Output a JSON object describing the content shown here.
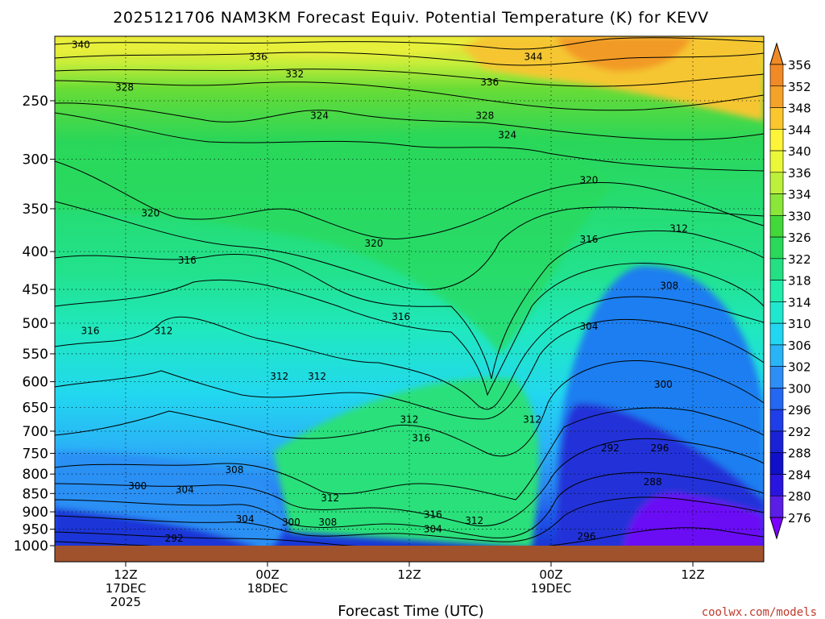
{
  "chart_data": {
    "type": "heatmap",
    "title": "2025121706 NAM3KM Forecast Equiv. Potential Temperature (K) for KEVV",
    "xlabel": "Forecast Time (UTC)",
    "ylabel": "",
    "y_axis": {
      "scale": "pressure",
      "inverted": true,
      "ticks": [
        250,
        300,
        350,
        400,
        450,
        500,
        550,
        600,
        650,
        700,
        750,
        800,
        850,
        900,
        950,
        1000
      ],
      "range": [
        200,
        1000
      ]
    },
    "x_axis": {
      "range_hours": [
        0,
        60
      ],
      "ticks": [
        {
          "hour": 6,
          "lines": [
            "12Z",
            "17DEC",
            "2025"
          ]
        },
        {
          "hour": 18,
          "lines": [
            "00Z",
            "18DEC"
          ]
        },
        {
          "hour": 30,
          "lines": [
            "12Z"
          ]
        },
        {
          "hour": 42,
          "lines": [
            "00Z",
            "19DEC"
          ]
        },
        {
          "hour": 54,
          "lines": [
            "12Z"
          ]
        }
      ]
    },
    "colorbar": {
      "levels": [
        276,
        280,
        284,
        288,
        292,
        296,
        300,
        302,
        306,
        310,
        314,
        318,
        322,
        326,
        330,
        334,
        336,
        340,
        344,
        348,
        352,
        356
      ],
      "colors": [
        "#7a00ff",
        "#5a1ee6",
        "#2a14e0",
        "#1010c8",
        "#1a22d6",
        "#1f3ee8",
        "#2467f0",
        "#2f8ef5",
        "#2ab3f7",
        "#22d6f2",
        "#20e8cf",
        "#22ecaa",
        "#24e083",
        "#2ad85a",
        "#42d83a",
        "#8ae638",
        "#bdf03a",
        "#eaf83a",
        "#fff43a",
        "#fcc62e",
        "#f5a22a",
        "#f08a26"
      ]
    },
    "contour_labels": [
      {
        "text": "340",
        "hour": 2.2,
        "p": 210
      },
      {
        "text": "336",
        "hour": 17.2,
        "p": 218
      },
      {
        "text": "344",
        "hour": 40.5,
        "p": 218
      },
      {
        "text": "332",
        "hour": 20.3,
        "p": 230
      },
      {
        "text": "336",
        "hour": 36.8,
        "p": 236
      },
      {
        "text": "328",
        "hour": 5.9,
        "p": 240
      },
      {
        "text": "324",
        "hour": 22.4,
        "p": 262
      },
      {
        "text": "328",
        "hour": 36.4,
        "p": 262
      },
      {
        "text": "324",
        "hour": 38.3,
        "p": 278
      },
      {
        "text": "320",
        "hour": 45.2,
        "p": 320
      },
      {
        "text": "320",
        "hour": 8.1,
        "p": 355
      },
      {
        "text": "320",
        "hour": 27.0,
        "p": 390
      },
      {
        "text": "316",
        "hour": 45.2,
        "p": 385
      },
      {
        "text": "312",
        "hour": 52.8,
        "p": 372
      },
      {
        "text": "316",
        "hour": 11.2,
        "p": 411
      },
      {
        "text": "308",
        "hour": 52.0,
        "p": 445
      },
      {
        "text": "316",
        "hour": 29.3,
        "p": 490
      },
      {
        "text": "316",
        "hour": 3.0,
        "p": 512
      },
      {
        "text": "312",
        "hour": 9.2,
        "p": 512
      },
      {
        "text": "304",
        "hour": 45.2,
        "p": 505
      },
      {
        "text": "312",
        "hour": 19.0,
        "p": 590
      },
      {
        "text": "312",
        "hour": 22.2,
        "p": 590
      },
      {
        "text": "300",
        "hour": 51.5,
        "p": 605
      },
      {
        "text": "312",
        "hour": 30.0,
        "p": 675
      },
      {
        "text": "312",
        "hour": 40.4,
        "p": 675
      },
      {
        "text": "316",
        "hour": 31.0,
        "p": 715
      },
      {
        "text": "292",
        "hour": 47.0,
        "p": 738
      },
      {
        "text": "296",
        "hour": 51.2,
        "p": 738
      },
      {
        "text": "308",
        "hour": 15.2,
        "p": 790
      },
      {
        "text": "288",
        "hour": 50.6,
        "p": 820
      },
      {
        "text": "300",
        "hour": 7.0,
        "p": 830
      },
      {
        "text": "304",
        "hour": 11.0,
        "p": 840
      },
      {
        "text": "312",
        "hour": 23.3,
        "p": 862
      },
      {
        "text": "316",
        "hour": 32.0,
        "p": 908
      },
      {
        "text": "312",
        "hour": 35.5,
        "p": 925
      },
      {
        "text": "304",
        "hour": 16.1,
        "p": 920
      },
      {
        "text": "300",
        "hour": 20.0,
        "p": 930
      },
      {
        "text": "308",
        "hour": 23.1,
        "p": 930
      },
      {
        "text": "304",
        "hour": 32.0,
        "p": 950
      },
      {
        "text": "292",
        "hour": 10.1,
        "p": 978
      },
      {
        "text": "296",
        "hour": 45.0,
        "p": 972
      }
    ]
  },
  "credit": "coolwx.com/models"
}
